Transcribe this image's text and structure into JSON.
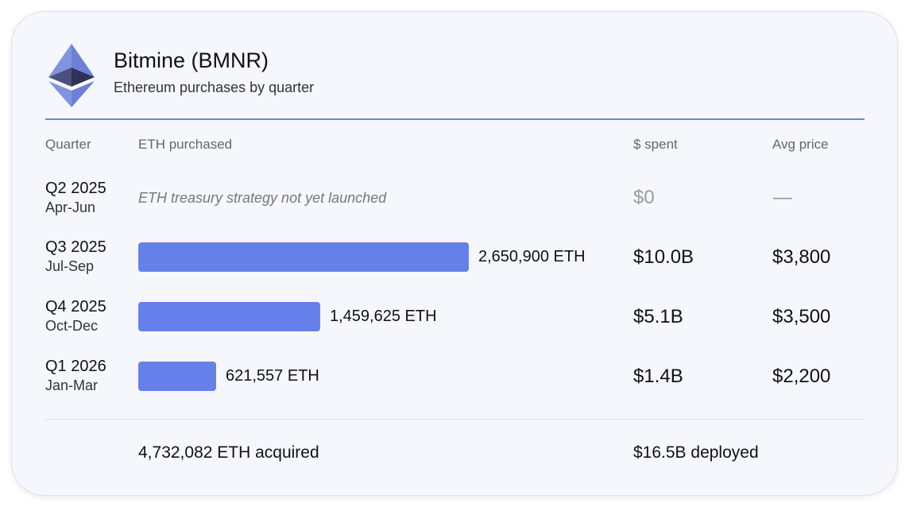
{
  "header": {
    "title": "Bitmine (BMNR)",
    "subtitle": "Ethereum purchases by quarter",
    "logo_icon": "ethereum-icon"
  },
  "colors": {
    "accent": "#6680ea",
    "card_background": "#f5f7fd"
  },
  "chart_data": {
    "type": "bar",
    "orientation": "horizontal",
    "columns": [
      "Quarter",
      "ETH purchased",
      "$ spent",
      "Avg price"
    ],
    "rows": [
      {
        "quarter": "Q2 2025",
        "months": "Apr-Jun",
        "eth": 0,
        "eth_label": "",
        "note": "ETH treasury strategy not yet launched",
        "spent": "$0",
        "avg_price": "—"
      },
      {
        "quarter": "Q3 2025",
        "months": "Jul-Sep",
        "eth": 2650900,
        "eth_label": "2,650,900 ETH",
        "note": "",
        "spent": "$10.0B",
        "avg_price": "$3,800"
      },
      {
        "quarter": "Q4 2025",
        "months": "Oct-Dec",
        "eth": 1459625,
        "eth_label": "1,459,625 ETH",
        "note": "",
        "spent": "$5.1B",
        "avg_price": "$3,500"
      },
      {
        "quarter": "Q1 2026",
        "months": "Jan-Mar",
        "eth": 621557,
        "eth_label": "621,557 ETH",
        "note": "",
        "spent": "$1.4B",
        "avg_price": "$2,200"
      }
    ],
    "xlim": [
      0,
      2650900
    ],
    "totals": {
      "eth": "4,732,082 ETH acquired",
      "spent": "$16.5B deployed"
    }
  }
}
